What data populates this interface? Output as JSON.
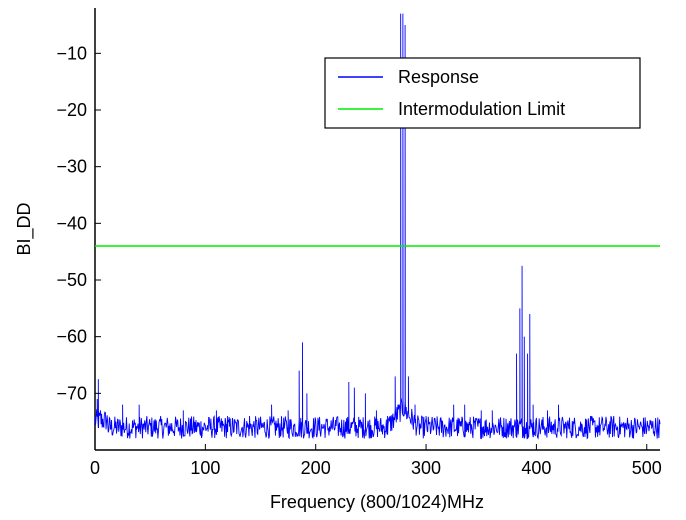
{
  "chart_data": {
    "type": "line",
    "xlabel": "Frequency (800/1024)MHz",
    "ylabel": "BI_DD",
    "xlim": [
      0,
      512
    ],
    "ylim": [
      -80,
      -2
    ],
    "xticks": [
      0,
      100,
      200,
      300,
      400,
      500
    ],
    "yticks": [
      -70,
      -60,
      -50,
      -40,
      -30,
      -20,
      -10
    ],
    "xtick_labels": [
      "0",
      "100",
      "200",
      "300",
      "400",
      "500"
    ],
    "ytick_labels": [
      "−70",
      "−60",
      "−50",
      "−40",
      "−30",
      "−20",
      "−10"
    ],
    "grid": false,
    "legend": "top-right",
    "series": [
      {
        "name": "Response",
        "color": "#0000ff",
        "baseline": -76,
        "noise_amplitude": 2,
        "spikes": [
          [
            2,
            -71
          ],
          [
            3,
            -67.5
          ],
          [
            5,
            -73
          ],
          [
            25,
            -72
          ],
          [
            40,
            -72
          ],
          [
            80,
            -73
          ],
          [
            110,
            -73
          ],
          [
            120,
            -74
          ],
          [
            140,
            -74
          ],
          [
            160,
            -72
          ],
          [
            175,
            -73
          ],
          [
            185,
            -66
          ],
          [
            188,
            -61
          ],
          [
            192,
            -70
          ],
          [
            230,
            -68
          ],
          [
            235,
            -69
          ],
          [
            245,
            -70
          ],
          [
            255,
            -73
          ],
          [
            265,
            -74
          ],
          [
            272,
            -67
          ],
          [
            277,
            -3
          ],
          [
            279,
            -3
          ],
          [
            281,
            -5
          ],
          [
            284,
            -67
          ],
          [
            290,
            -72
          ],
          [
            300,
            -74
          ],
          [
            325,
            -72
          ],
          [
            335,
            -72
          ],
          [
            350,
            -73
          ],
          [
            360,
            -73
          ],
          [
            382,
            -63
          ],
          [
            385,
            -55
          ],
          [
            387,
            -47.5
          ],
          [
            389,
            -60
          ],
          [
            392,
            -63
          ],
          [
            394,
            -56
          ],
          [
            397,
            -72
          ],
          [
            410,
            -73
          ],
          [
            420,
            -72
          ],
          [
            450,
            -74
          ],
          [
            470,
            -74
          ]
        ]
      },
      {
        "name": "Intermodulation Limit",
        "color": "#00ee00",
        "value": -44
      }
    ]
  }
}
